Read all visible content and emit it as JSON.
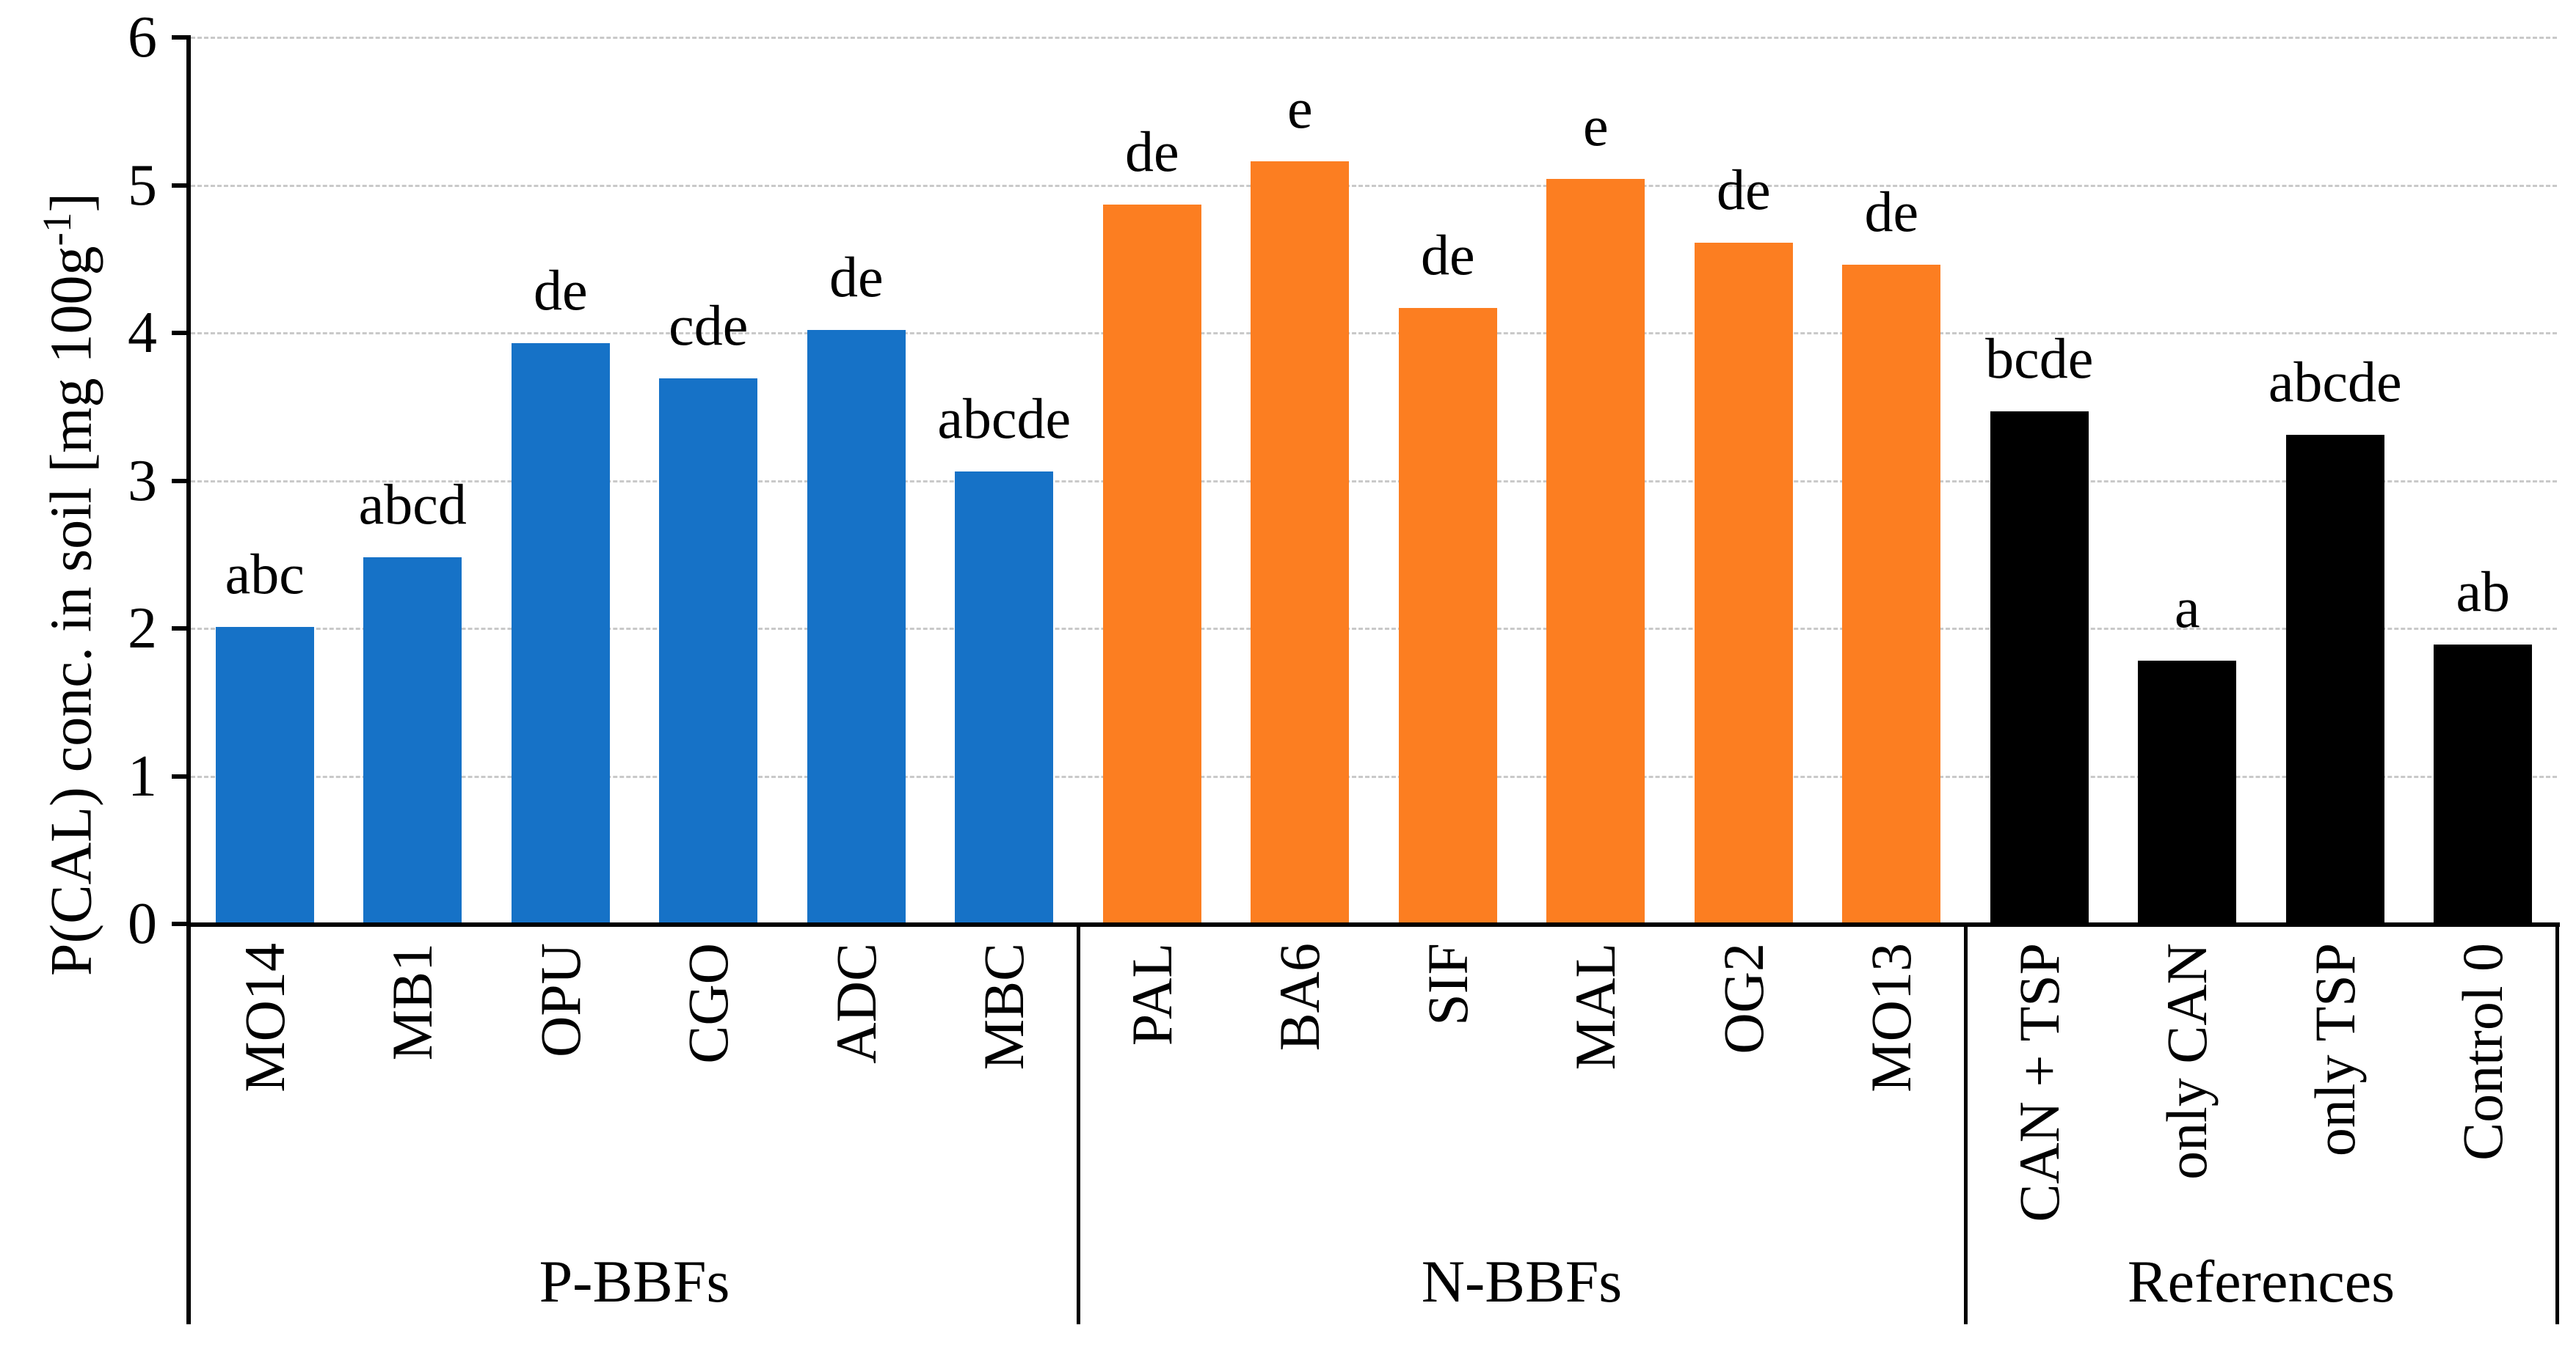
{
  "y_axis": {
    "title_main": "P(CAL) conc. in soil [mg 100g",
    "title_sup": "-1",
    "title_close": "]"
  },
  "chart_data": {
    "type": "bar",
    "title": "",
    "xlabel": "",
    "ylabel": "P(CAL) conc. in soil [mg 100g-1]",
    "ylim": [
      0,
      6
    ],
    "yticks": [
      0,
      1,
      2,
      3,
      4,
      5,
      6
    ],
    "grid": "horizontal-dashed",
    "gridline_color": "#c9c9c9",
    "legend": false,
    "bar_annotation_type": "significance-letters",
    "groups": [
      {
        "name": "P-BBFs",
        "color": "#1672c7",
        "categories": [
          "MO14",
          "MB1",
          "OPU",
          "CGO",
          "ADC",
          "MBC"
        ],
        "values": [
          2.01,
          2.48,
          3.93,
          3.69,
          4.02,
          3.06
        ],
        "sig_letters": [
          "abc",
          "abcd",
          "de",
          "cde",
          "de",
          "abcde"
        ]
      },
      {
        "name": "N-BBFs",
        "color": "#fc7e21",
        "categories": [
          "PAL",
          "BA6",
          "SIF",
          "MAL",
          "OG2",
          "MO13"
        ],
        "values": [
          4.87,
          5.16,
          4.17,
          5.04,
          4.61,
          4.46
        ],
        "sig_letters": [
          "de",
          "e",
          "de",
          "e",
          "de",
          "de"
        ]
      },
      {
        "name": "References",
        "color": "#000000",
        "categories": [
          "CAN + TSP",
          "only CAN",
          "only TSP",
          "Control 0"
        ],
        "values": [
          3.47,
          1.78,
          3.31,
          1.89
        ],
        "sig_letters": [
          "bcde",
          "a",
          "abcde",
          "ab"
        ]
      }
    ]
  }
}
